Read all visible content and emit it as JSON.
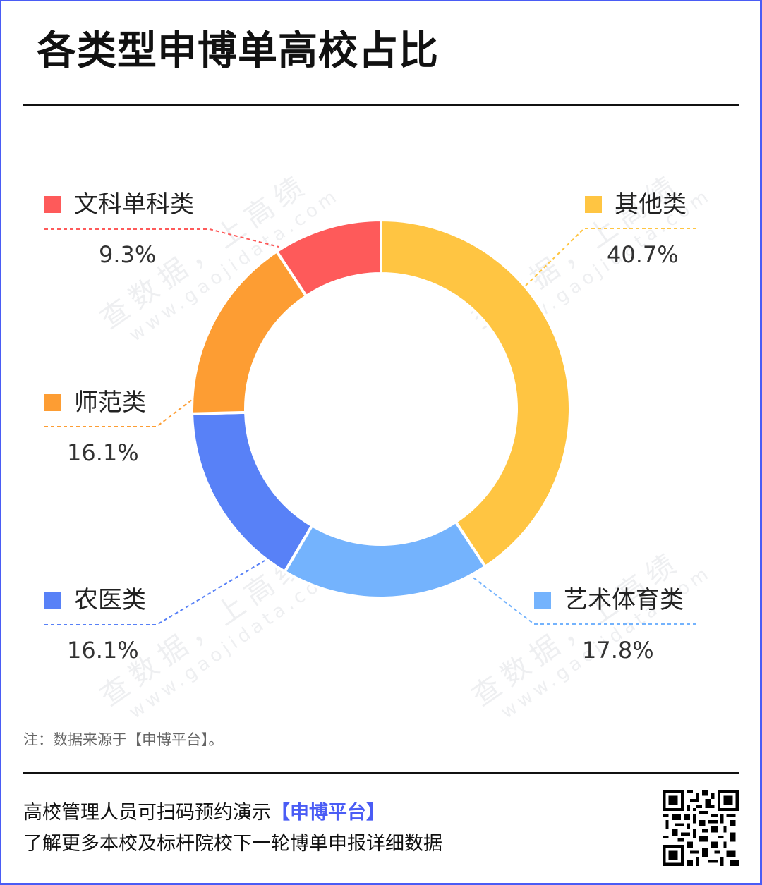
{
  "header": {
    "title": "各类型申博单高校占比"
  },
  "chart_data": {
    "type": "pie",
    "variant": "donut",
    "title": "各类型申博单高校占比",
    "start_angle_deg": 0,
    "direction": "clockwise",
    "categories": [
      "其他类",
      "艺术体育类",
      "农医类",
      "师范类",
      "文科单科类"
    ],
    "values": [
      40.7,
      17.8,
      16.1,
      16.1,
      9.3
    ],
    "labels": [
      "40.7%",
      "17.8%",
      "16.1%",
      "16.1%",
      "9.3%"
    ],
    "colors": [
      "#ffc542",
      "#74b3fd",
      "#5881f7",
      "#fd9d33",
      "#fe5a5a"
    ],
    "legend_position": "around-chart-with-leader-lines",
    "unit": "%"
  },
  "legend": [
    {
      "name": "文科单科类",
      "value": "9.3%",
      "color": "#fe5a5a"
    },
    {
      "name": "其他类",
      "value": "40.7%",
      "color": "#ffc542"
    },
    {
      "name": "师范类",
      "value": "16.1%",
      "color": "#fd9d33"
    },
    {
      "name": "农医类",
      "value": "16.1%",
      "color": "#5881f7"
    },
    {
      "name": "艺术体育类",
      "value": "17.8%",
      "color": "#74b3fd"
    }
  ],
  "watermark": {
    "line1": "查数据，上高绩",
    "line2": "www.gaojidata.com"
  },
  "note": "注：数据来源于【申博平台】。",
  "footer": {
    "line1_prefix": "高校管理人员可扫码预约演示",
    "line1_highlight": "【申博平台】",
    "line2": "了解更多本校及标杆院校下一轮博单申报详细数据",
    "qr_label": "qr-code"
  },
  "colors": {
    "accent": "#4a5cf5",
    "border": "#4a5cf5",
    "title": "#111111"
  }
}
